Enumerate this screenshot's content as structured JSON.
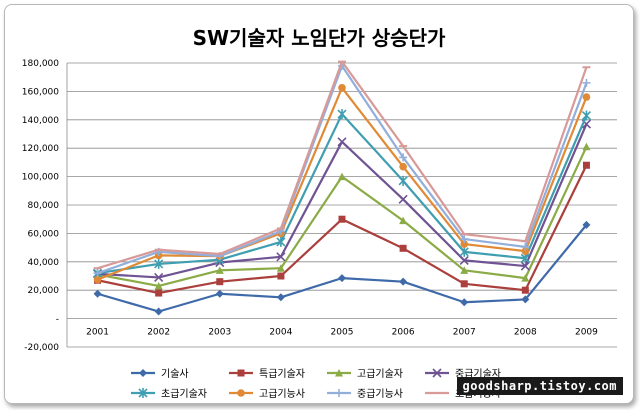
{
  "chart_data": {
    "type": "line",
    "title": "SW기술자 노임단가 상승단가",
    "categories": [
      "2001",
      "2002",
      "2003",
      "2004",
      "2005",
      "2006",
      "2007",
      "2008",
      "2009"
    ],
    "ylim": [
      -20000,
      180000
    ],
    "y_ticks": [
      "180,000",
      "160,000",
      "140,000",
      "120,000",
      "100,000",
      "80,000",
      "60,000",
      "40,000",
      "20,000",
      "-",
      "-20,000"
    ],
    "grid": true,
    "legend_position": "bottom",
    "series": [
      {
        "name": "기술사",
        "color": "#3f6aaa",
        "marker": "diamond",
        "values": [
          17500,
          5000,
          17500,
          15000,
          28500,
          26000,
          11500,
          13500,
          66000
        ]
      },
      {
        "name": "특급기술자",
        "color": "#aa3f3c",
        "marker": "square",
        "values": [
          27000,
          18000,
          26000,
          30000,
          70000,
          49500,
          24500,
          20000,
          108000
        ]
      },
      {
        "name": "고급기술자",
        "color": "#8aab45",
        "marker": "triangle",
        "values": [
          31000,
          23000,
          34000,
          35500,
          100000,
          69000,
          34000,
          28500,
          121000
        ]
      },
      {
        "name": "중급기술자",
        "color": "#6f5393",
        "marker": "x",
        "values": [
          31500,
          29000,
          39500,
          43500,
          124500,
          84000,
          41000,
          37000,
          137000
        ]
      },
      {
        "name": "초급기술자",
        "color": "#3f9eb0",
        "marker": "star",
        "values": [
          32000,
          38500,
          41500,
          54000,
          144000,
          97000,
          47000,
          42500,
          143000
        ]
      },
      {
        "name": "고급기능사",
        "color": "#e08a36",
        "marker": "circle",
        "values": [
          27500,
          44500,
          44000,
          60000,
          162500,
          107000,
          52500,
          47500,
          156000
        ]
      },
      {
        "name": "중급기능사",
        "color": "#92aedb",
        "marker": "plus",
        "values": [
          32000,
          47000,
          44000,
          61500,
          178000,
          113500,
          56000,
          50500,
          166000
        ]
      },
      {
        "name": "초급기능사",
        "color": "#d89a98",
        "marker": "dash",
        "values": [
          35500,
          48500,
          45500,
          63500,
          181000,
          121500,
          59500,
          54500,
          177000
        ]
      }
    ]
  },
  "watermark": "goodsharp.tistoy.com"
}
